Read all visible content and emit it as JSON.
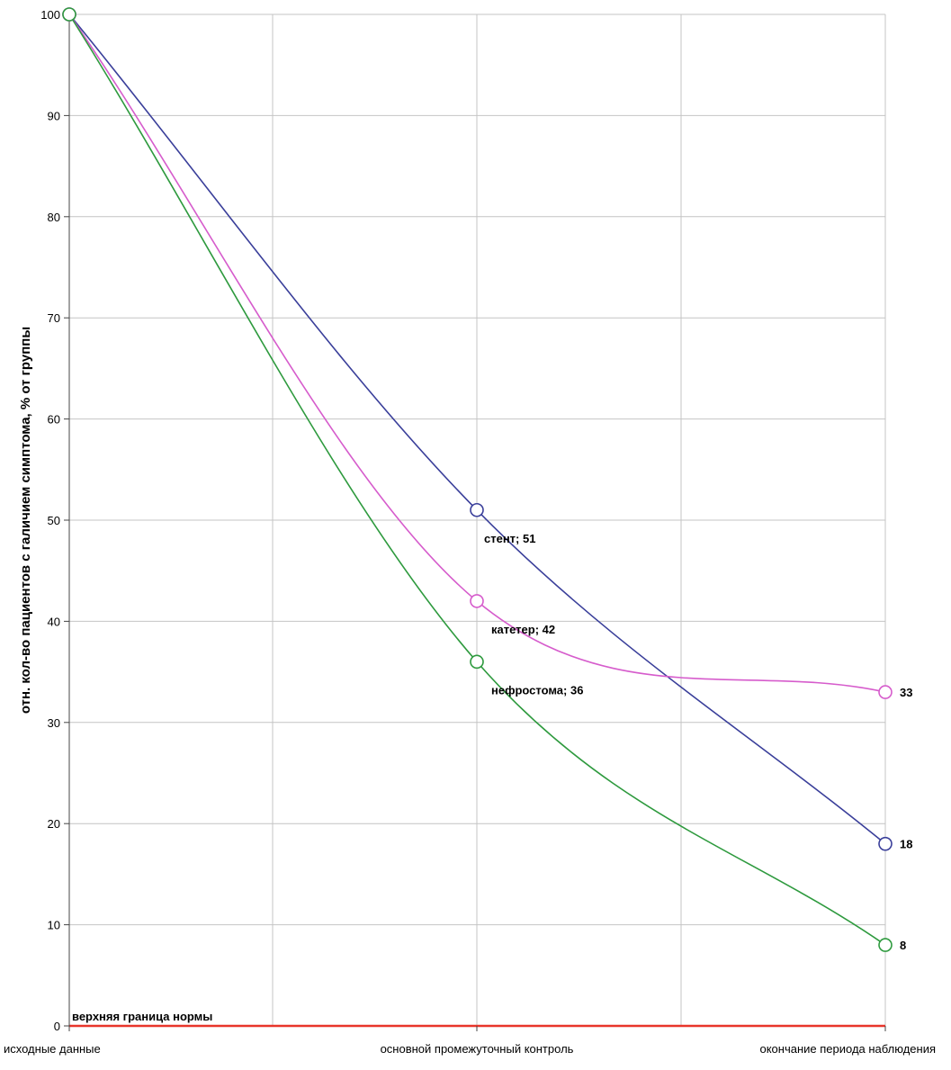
{
  "chart_data": {
    "type": "line",
    "title": "",
    "xlabel": "",
    "ylabel": "отн. кол-во пациентов с галичием симптома, % от группы",
    "ylim": [
      0,
      100
    ],
    "y_ticks": [
      0,
      10,
      20,
      30,
      40,
      50,
      60,
      70,
      80,
      90,
      100
    ],
    "categories": [
      "исходные данные",
      "основной промежуточный контроль",
      "окончание периода наблюдения"
    ],
    "grid": true,
    "legend": "none",
    "series": [
      {
        "name": "стент",
        "values": [
          100,
          51,
          18
        ],
        "color": "#3a3f9a",
        "marker_color": "#3a3f9a"
      },
      {
        "name": "катетер",
        "values": [
          100,
          42,
          33
        ],
        "color": "#d65ccc",
        "marker_color": "#d65ccc"
      },
      {
        "name": "нефростома",
        "values": [
          100,
          36,
          8
        ],
        "color": "#2e9a3e",
        "marker_color": "#2e9a3e"
      }
    ],
    "point_labels": [
      {
        "series": 0,
        "point": 1,
        "text": "стент; 51"
      },
      {
        "series": 1,
        "point": 1,
        "text": "катетер; 42"
      },
      {
        "series": 2,
        "point": 1,
        "text": "нефростома; 36"
      },
      {
        "series": 1,
        "point": 2,
        "text": "33"
      },
      {
        "series": 0,
        "point": 2,
        "text": "18"
      },
      {
        "series": 2,
        "point": 2,
        "text": "8"
      }
    ],
    "reference_line": {
      "value": 0,
      "label": "верхняя граница нормы",
      "color": "#e8352a"
    },
    "grid_color": "#c4c4c4"
  }
}
